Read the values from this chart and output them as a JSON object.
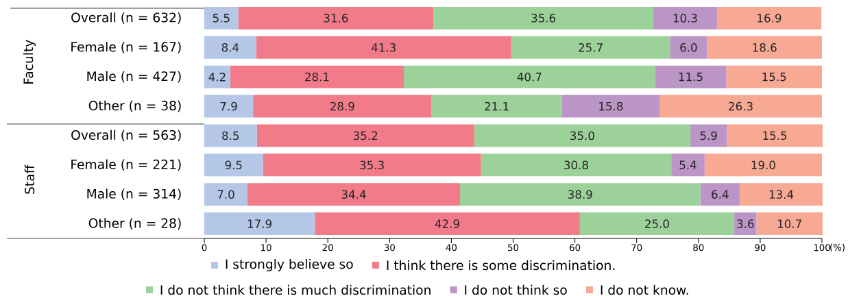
{
  "chart_data": {
    "type": "bar",
    "orientation": "horizontal",
    "stacked": true,
    "categories": [
      "Overall (n = 632)",
      "Female (n = 167)",
      "Male (n = 427)",
      "Other (n = 38)",
      "Overall (n = 563)",
      "Female (n = 221)",
      "Male (n = 314)",
      "Other (n = 28)"
    ],
    "series": [
      {
        "name": "I strongly believe so",
        "color": "#b4c7e7",
        "values": [
          5.5,
          8.4,
          4.2,
          7.9,
          8.5,
          9.5,
          7.0,
          17.9
        ],
        "value_labels": [
          "5.5",
          "8.4",
          "4.2",
          "7.9",
          "8.5",
          "9.5",
          "7.0",
          "17.9"
        ]
      },
      {
        "name": "I think there is some discrimination.",
        "color": "#f27b8a",
        "values": [
          31.6,
          41.3,
          28.1,
          28.9,
          35.2,
          35.3,
          34.4,
          42.9
        ],
        "value_labels": [
          "31.6",
          "41.3",
          "28.1",
          "28.9",
          "35.2",
          "35.3",
          "34.4",
          "42.9"
        ]
      },
      {
        "name": "I do not think there is much discrimination",
        "color": "#9dd19a",
        "values": [
          35.6,
          25.7,
          40.7,
          21.1,
          35.0,
          30.8,
          38.9,
          25.0
        ],
        "value_labels": [
          "35.6",
          "25.7",
          "40.7",
          "21.1",
          "35.0",
          "30.8",
          "38.9",
          "25.0"
        ]
      },
      {
        "name": "I do not think so",
        "color": "#bb95c6",
        "values": [
          10.3,
          6.0,
          11.5,
          15.8,
          5.9,
          5.4,
          6.4,
          3.6
        ],
        "value_labels": [
          "10.3",
          "6.0",
          "11.5",
          "15.8",
          "5.9",
          "5.4",
          "6.4",
          "3.6"
        ]
      },
      {
        "name": "I do not know.",
        "color": "#f7a994",
        "values": [
          16.9,
          18.6,
          15.5,
          26.3,
          15.5,
          19.0,
          13.4,
          10.7
        ],
        "value_labels": [
          "16.9",
          "18.6",
          "15.5",
          "26.3",
          "15.5",
          "19.0",
          "13.4",
          "10.7"
        ]
      }
    ],
    "xlim": [
      0,
      100
    ],
    "xticks": [
      0,
      10,
      20,
      30,
      40,
      50,
      60,
      70,
      80,
      90,
      100
    ],
    "xlabel": "(%)",
    "annotations": [
      "Faculty",
      "Staff"
    ],
    "legend": "bottom"
  }
}
